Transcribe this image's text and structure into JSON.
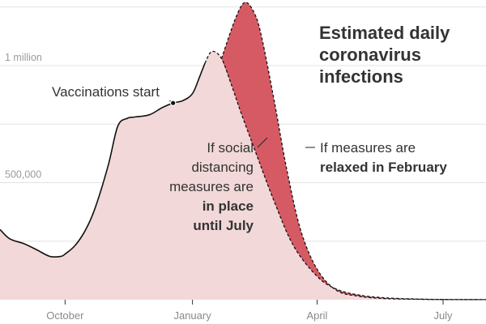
{
  "chart_data": {
    "type": "area",
    "title": "Estimated daily coronavirus infections",
    "title_lines": [
      "Estimated daily",
      "coronavirus",
      "infections"
    ],
    "y_ticks": [
      {
        "value": 500000,
        "label": "500,000"
      },
      {
        "value": 1000000,
        "label": "1 million"
      }
    ],
    "x_ticks": [
      {
        "value": "2020-10-01",
        "label": "October"
      },
      {
        "value": "2021-01-01",
        "label": "January"
      },
      {
        "value": "2021-04-01",
        "label": "April"
      },
      {
        "value": "2021-07-01",
        "label": "July"
      }
    ],
    "xlim": [
      "2020-08-15",
      "2021-08-01"
    ],
    "ylim": [
      0,
      1280000
    ],
    "grid": true,
    "colors": {
      "social_distancing_fill": "#f2d8d8",
      "relaxed_fill": "#d65a64",
      "line": "#111111",
      "grid": "#e3e3e3"
    },
    "series": [
      {
        "line_style": "solid",
        "x": [
          "2020-08-15",
          "2020-08-22",
          "2020-09-01",
          "2020-09-10",
          "2020-09-20",
          "2020-09-28",
          "2020-10-01",
          "2020-10-08",
          "2020-10-15",
          "2020-10-22",
          "2020-11-01",
          "2020-11-08",
          "2020-11-15",
          "2020-11-20",
          "2020-12-01",
          "2020-12-10",
          "2020-12-18",
          "2020-12-25",
          "2021-01-01",
          "2021-01-06",
          "2021-01-10"
        ],
        "values": [
          300000,
          260000,
          240000,
          215000,
          185000,
          185000,
          195000,
          230000,
          290000,
          380000,
          570000,
          740000,
          775000,
          780000,
          790000,
          820000,
          840000,
          850000,
          880000,
          950000,
          1010000
        ]
      },
      {
        "line_style": "dashed",
        "x": [
          "2021-01-10",
          "2021-01-15",
          "2021-01-22",
          "2021-01-29",
          "2021-02-05",
          "2021-02-15",
          "2021-03-01",
          "2021-03-15",
          "2021-04-01",
          "2021-04-15",
          "2021-05-01",
          "2021-05-20",
          "2021-06-10",
          "2021-07-01",
          "2021-08-01"
        ],
        "values": [
          1010000,
          1060000,
          1030000,
          920000,
          800000,
          640000,
          420000,
          230000,
          100000,
          45000,
          20000,
          8000,
          3000,
          1000,
          500
        ]
      },
      {
        "line_style": "dashed",
        "x": [
          "2021-01-22",
          "2021-02-01",
          "2021-02-08",
          "2021-02-15",
          "2021-02-20",
          "2021-03-01",
          "2021-03-10",
          "2021-03-20",
          "2021-04-01",
          "2021-04-15",
          "2021-05-01",
          "2021-05-20",
          "2021-06-10",
          "2021-07-01",
          "2021-08-01"
        ],
        "values": [
          1030000,
          1200000,
          1270000,
          1220000,
          1120000,
          850000,
          560000,
          300000,
          130000,
          40000,
          15000,
          5000,
          2000,
          800,
          300
        ]
      }
    ],
    "annotations": [
      {
        "key": "vaccinations",
        "x": "2020-12-18",
        "y": 840000,
        "lines": [
          [
            {
              "text": "Vaccinations start",
              "bold": false
            }
          ]
        ]
      },
      {
        "key": "distancing",
        "lines": [
          [
            {
              "text": "If social",
              "bold": false
            }
          ],
          [
            {
              "text": "distancing",
              "bold": false
            }
          ],
          [
            {
              "text": "measures are",
              "bold": false
            }
          ],
          [
            {
              "text": "in place",
              "bold": true
            }
          ],
          [
            {
              "text": "until July",
              "bold": true
            }
          ]
        ]
      },
      {
        "key": "relaxed",
        "lines": [
          [
            {
              "text": "If measures are",
              "bold": false
            }
          ],
          [
            {
              "text": "relaxed in February",
              "bold": true
            }
          ]
        ]
      }
    ]
  }
}
